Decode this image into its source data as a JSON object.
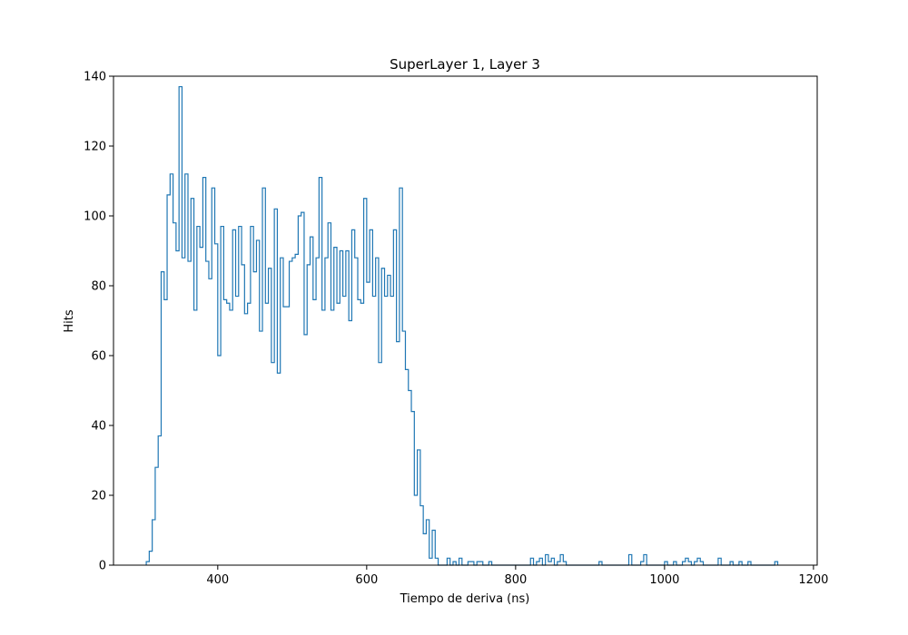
{
  "chart_data": {
    "type": "step",
    "title": "SuperLayer 1, Layer 3",
    "xlabel": "Tiempo de deriva (ns)",
    "ylabel": "Hits",
    "xlim": [
      260,
      1205
    ],
    "ylim": [
      0,
      140
    ],
    "xticks": [
      400,
      600,
      800,
      1000,
      1200
    ],
    "yticks": [
      0,
      20,
      40,
      60,
      80,
      100,
      120,
      140
    ],
    "grid": false,
    "line_color": "#1f77b4",
    "bins": {
      "start": 304,
      "width": 4,
      "counts": [
        1,
        4,
        13,
        28,
        37,
        84,
        76,
        106,
        112,
        98,
        90,
        137,
        88,
        112,
        87,
        105,
        73,
        97,
        91,
        111,
        87,
        82,
        108,
        92,
        60,
        97,
        76,
        75,
        73,
        96,
        77,
        97,
        86,
        72,
        75,
        97,
        84,
        93,
        67,
        108,
        75,
        85,
        58,
        102,
        55,
        88,
        74,
        74,
        87,
        88,
        89,
        100,
        101,
        66,
        86,
        94,
        76,
        88,
        111,
        73,
        88,
        98,
        73,
        91,
        75,
        90,
        77,
        90,
        70,
        96,
        88,
        76,
        75,
        105,
        81,
        96,
        77,
        88,
        58,
        85,
        77,
        83,
        77,
        96,
        64,
        108,
        67,
        56,
        50,
        44,
        20,
        33,
        17,
        9,
        13,
        2,
        10,
        2,
        0,
        0,
        0,
        2,
        0,
        1,
        0,
        2,
        0,
        0,
        1,
        1,
        0,
        1,
        1,
        0,
        0,
        1,
        0,
        0,
        0,
        0,
        0,
        0,
        0,
        0,
        0,
        0,
        0,
        0,
        0,
        2,
        0,
        1,
        2,
        0,
        3,
        1,
        2,
        0,
        1,
        3,
        1,
        0,
        0,
        0,
        0,
        0,
        0,
        0,
        0,
        0,
        0,
        0,
        1,
        0,
        0,
        0,
        0,
        0,
        0,
        0,
        0,
        0,
        3,
        0,
        0,
        0,
        1,
        3,
        0,
        0,
        0,
        0,
        0,
        0,
        1,
        0,
        0,
        1,
        0,
        0,
        1,
        2,
        1,
        0,
        1,
        2,
        1,
        0,
        0,
        0,
        0,
        0,
        2,
        0,
        0,
        0,
        1,
        0,
        0,
        1,
        0,
        0,
        1,
        0,
        0,
        0,
        0,
        0,
        0,
        0,
        0,
        1
      ]
    }
  }
}
